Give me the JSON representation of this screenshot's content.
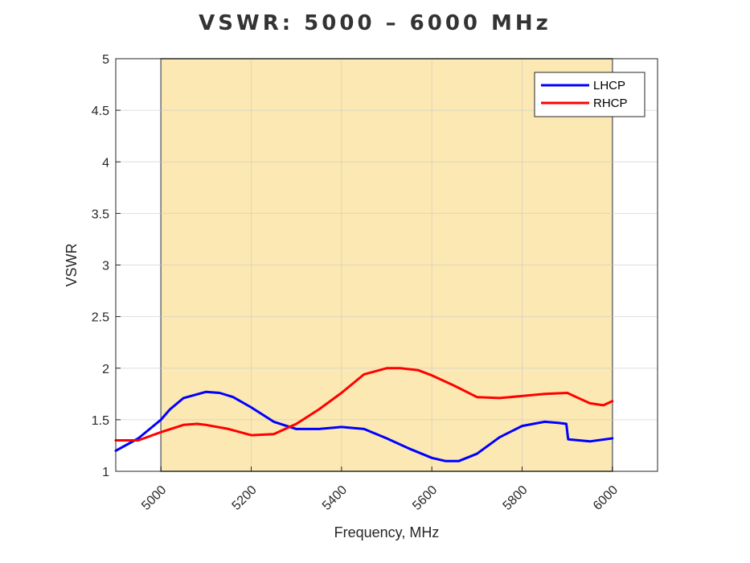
{
  "title": "VSWR: 5000 – 6000 MHz",
  "chart_data": {
    "type": "line",
    "title": "VSWR: 5000 – 6000 MHz",
    "xlabel": "Frequency, MHz",
    "ylabel": "VSWR",
    "xlim": [
      4900,
      6100
    ],
    "ylim": [
      1,
      5
    ],
    "xticks": [
      "5000",
      "5200",
      "5400",
      "5600",
      "5800",
      "6000"
    ],
    "yticks": [
      "1",
      "1.5",
      "2",
      "2.5",
      "3",
      "3.5",
      "4",
      "4.5",
      "5"
    ],
    "grid": true,
    "legend_position": "top-right",
    "shaded_band": {
      "x": [
        5000,
        6000
      ],
      "color": "#fce8b2"
    },
    "series": [
      {
        "name": "LHCP",
        "color": "#0000ff",
        "x": [
          4900,
          4950,
          5000,
          5020,
          5050,
          5100,
          5130,
          5160,
          5200,
          5250,
          5300,
          5350,
          5400,
          5450,
          5500,
          5550,
          5600,
          5630,
          5660,
          5700,
          5750,
          5800,
          5850,
          5880,
          5898,
          5902,
          5950,
          6000
        ],
        "values": [
          1.2,
          1.32,
          1.5,
          1.6,
          1.71,
          1.77,
          1.76,
          1.72,
          1.62,
          1.48,
          1.41,
          1.41,
          1.43,
          1.41,
          1.32,
          1.22,
          1.13,
          1.1,
          1.1,
          1.17,
          1.33,
          1.44,
          1.48,
          1.47,
          1.46,
          1.31,
          1.29,
          1.32
        ]
      },
      {
        "name": "RHCP",
        "color": "#ff0000",
        "x": [
          4900,
          4950,
          5000,
          5050,
          5080,
          5100,
          5150,
          5200,
          5250,
          5300,
          5350,
          5400,
          5450,
          5500,
          5530,
          5570,
          5600,
          5650,
          5700,
          5750,
          5800,
          5850,
          5900,
          5920,
          5950,
          5980,
          6000
        ],
        "values": [
          1.3,
          1.3,
          1.38,
          1.45,
          1.46,
          1.45,
          1.41,
          1.35,
          1.36,
          1.46,
          1.6,
          1.76,
          1.94,
          2.0,
          2.0,
          1.98,
          1.93,
          1.83,
          1.72,
          1.71,
          1.73,
          1.75,
          1.76,
          1.72,
          1.66,
          1.64,
          1.68
        ]
      }
    ]
  }
}
